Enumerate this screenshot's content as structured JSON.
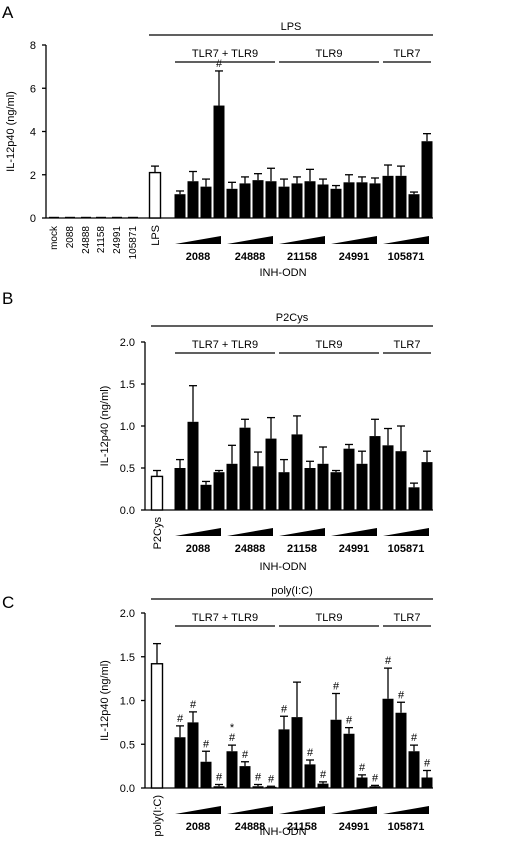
{
  "colors": {
    "control": "#ffffff",
    "treated": "#000000",
    "stroke": "#000000"
  },
  "chart_data": [
    {
      "type": "bar",
      "panel": "A",
      "stimulus": "LPS",
      "ylabel": "IL-12p40 (ng/ml)",
      "ylim": [
        0,
        8
      ],
      "yticks": [
        "0",
        "2",
        "4",
        "6",
        "8"
      ],
      "xlabel": "INH-ODN",
      "receptor_groups": [
        {
          "label": "TLR7 + TLR9",
          "from": 0,
          "to": 1
        },
        {
          "label": "TLR9",
          "from": 2,
          "to": 3
        },
        {
          "label": "TLR7",
          "from": 4,
          "to": 4
        }
      ],
      "control_labels": [
        "mock",
        "2088",
        "24888",
        "21158",
        "24991",
        "105871"
      ],
      "control_values": [
        0,
        0.05,
        0,
        0,
        0,
        0
      ],
      "stim_control": {
        "label": "LPS",
        "value": 2.1,
        "error": 0.3
      },
      "groups": [
        {
          "label": "2088",
          "values": [
            1.1,
            1.7,
            1.45,
            5.2
          ],
          "errors": [
            0.15,
            0.45,
            0.35,
            1.6
          ],
          "marks": [
            "",
            "",
            "",
            "#"
          ]
        },
        {
          "label": "24888",
          "values": [
            1.35,
            1.6,
            1.75,
            1.7
          ],
          "errors": [
            0.3,
            0.3,
            0.3,
            0.6
          ],
          "marks": [
            "",
            "",
            "",
            ""
          ]
        },
        {
          "label": "21158",
          "values": [
            1.45,
            1.6,
            1.7,
            1.55
          ],
          "errors": [
            0.35,
            0.3,
            0.55,
            0.25
          ],
          "marks": [
            "",
            "",
            "",
            ""
          ]
        },
        {
          "label": "24991",
          "values": [
            1.35,
            1.65,
            1.65,
            1.6
          ],
          "errors": [
            0.15,
            0.35,
            0.25,
            0.25
          ],
          "marks": [
            "",
            "",
            "",
            ""
          ]
        },
        {
          "label": "105871",
          "values": [
            1.95,
            1.95,
            1.1,
            3.55
          ],
          "errors": [
            0.5,
            0.45,
            0.1,
            0.35
          ],
          "marks": [
            "",
            "",
            "",
            ""
          ]
        }
      ]
    },
    {
      "type": "bar",
      "panel": "B",
      "stimulus": "P2Cys",
      "ylabel": "IL-12p40 (ng/ml)",
      "ylim": [
        0,
        2.0
      ],
      "yticks": [
        "0.0",
        "0.5",
        "1.0",
        "1.5",
        "2.0"
      ],
      "xlabel": "INH-ODN",
      "receptor_groups": [
        {
          "label": "TLR7 + TLR9",
          "from": 0,
          "to": 1
        },
        {
          "label": "TLR9",
          "from": 2,
          "to": 3
        },
        {
          "label": "TLR7",
          "from": 4,
          "to": 4
        }
      ],
      "control_labels": [],
      "control_values": [],
      "stim_control": {
        "label": "P2Cys",
        "value": 0.4,
        "error": 0.07
      },
      "groups": [
        {
          "label": "2088",
          "values": [
            0.5,
            1.05,
            0.3,
            0.45
          ],
          "errors": [
            0.1,
            0.43,
            0.04,
            0.02
          ],
          "marks": [
            "",
            "",
            "",
            ""
          ]
        },
        {
          "label": "24888",
          "values": [
            0.55,
            0.98,
            0.52,
            0.85
          ],
          "errors": [
            0.22,
            0.1,
            0.17,
            0.25
          ],
          "marks": [
            "",
            "",
            "",
            ""
          ]
        },
        {
          "label": "21158",
          "values": [
            0.45,
            0.9,
            0.5,
            0.55
          ],
          "errors": [
            0.15,
            0.22,
            0.08,
            0.2
          ],
          "marks": [
            "",
            "",
            "",
            ""
          ]
        },
        {
          "label": "24991",
          "values": [
            0.45,
            0.73,
            0.55,
            0.88
          ],
          "errors": [
            0.02,
            0.05,
            0.15,
            0.2
          ],
          "marks": [
            "",
            "",
            "",
            ""
          ]
        },
        {
          "label": "105871",
          "values": [
            0.77,
            0.7,
            0.27,
            0.57
          ],
          "errors": [
            0.2,
            0.3,
            0.05,
            0.13
          ],
          "marks": [
            "",
            "",
            "",
            ""
          ]
        }
      ]
    },
    {
      "type": "bar",
      "panel": "C",
      "stimulus": "poly(I:C)",
      "ylabel": "IL-12p40 (ng/ml)",
      "ylim": [
        0,
        2.0
      ],
      "yticks": [
        "0.0",
        "0.5",
        "1.0",
        "1.5",
        "2.0"
      ],
      "xlabel": "INH-ODN",
      "receptor_groups": [
        {
          "label": "TLR7 + TLR9",
          "from": 0,
          "to": 1
        },
        {
          "label": "TLR9",
          "from": 2,
          "to": 3
        },
        {
          "label": "TLR7",
          "from": 4,
          "to": 4
        }
      ],
      "control_labels": [],
      "control_values": [],
      "stim_control": {
        "label": "poly(I:C)",
        "value": 1.42,
        "error": 0.23
      },
      "groups": [
        {
          "label": "2088",
          "values": [
            0.58,
            0.75,
            0.3,
            0.02
          ],
          "errors": [
            0.13,
            0.12,
            0.12,
            0.02
          ],
          "marks": [
            "#",
            "#",
            "#",
            "#"
          ]
        },
        {
          "label": "24888",
          "values": [
            0.42,
            0.25,
            0.02,
            0.01
          ],
          "errors": [
            0.07,
            0.05,
            0.02,
            0.01
          ],
          "marks": [
            "*#",
            "#",
            "#",
            "#"
          ]
        },
        {
          "label": "21158",
          "values": [
            0.67,
            0.81,
            0.27,
            0.05
          ],
          "errors": [
            0.15,
            0.4,
            0.05,
            0.02
          ],
          "marks": [
            "#",
            "",
            "#",
            "#"
          ]
        },
        {
          "label": "24991",
          "values": [
            0.78,
            0.62,
            0.12,
            0.02
          ],
          "errors": [
            0.3,
            0.07,
            0.03,
            0.01
          ],
          "marks": [
            "#",
            "#",
            "#",
            "#"
          ]
        },
        {
          "label": "105871",
          "values": [
            1.02,
            0.86,
            0.42,
            0.12
          ],
          "errors": [
            0.35,
            0.12,
            0.07,
            0.08
          ],
          "marks": [
            "#",
            "#",
            "#",
            "#"
          ]
        }
      ]
    }
  ]
}
